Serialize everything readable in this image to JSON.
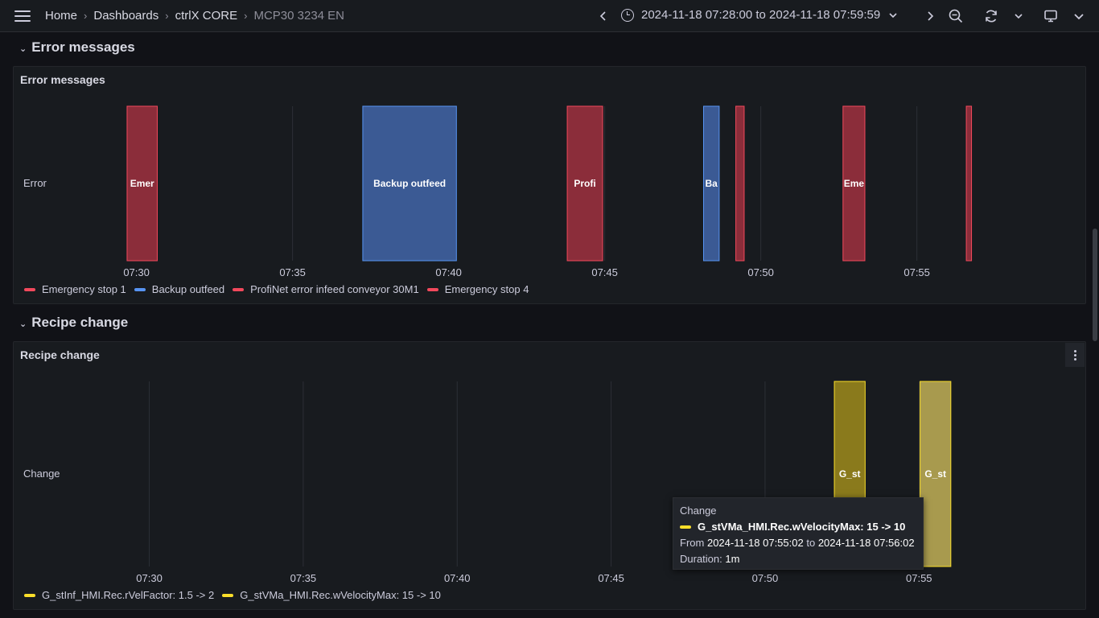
{
  "topbar": {
    "breadcrumbs": [
      "Home",
      "Dashboards",
      "ctrlX CORE"
    ],
    "current": "MCP30 3234 EN",
    "time_range": "2024-11-18 07:28:00 to 2024-11-18 07:59:59"
  },
  "rows": [
    {
      "title": "Error messages"
    },
    {
      "title": "Recipe change"
    }
  ],
  "panels": {
    "errors": {
      "title": "Error messages",
      "legend": [
        {
          "label": "Emergency stop 1",
          "color": "#f2495c"
        },
        {
          "label": "Backup outfeed",
          "color": "#5794f2"
        },
        {
          "label": "ProfiNet error infeed conveyor 30M1",
          "color": "#f2495c"
        },
        {
          "label": "Emergency stop 4",
          "color": "#f2495c"
        }
      ]
    },
    "recipe": {
      "title": "Recipe change",
      "legend": [
        {
          "label": "G_stInf_HMI.Rec.rVelFactor: 1.5 -> 2",
          "color": "#fade2a"
        },
        {
          "label": "G_stVMa_HMI.Rec.wVelocityMax: 15 -> 10",
          "color": "#fade2a"
        }
      ]
    }
  },
  "chart_data": [
    {
      "type": "state-timeline",
      "title": "Error messages",
      "row_label": "Error",
      "x_ticks": [
        "07:30",
        "07:35",
        "07:40",
        "07:45",
        "07:50",
        "07:55"
      ],
      "x_range": [
        "07:28:00",
        "07:59:59"
      ],
      "segments": [
        {
          "label": "Emer",
          "start": "07:29:42",
          "end": "07:30:40",
          "color": "#8b2d3a",
          "border": "#f2495c"
        },
        {
          "label": "Backup outfeed",
          "start": "07:37:15",
          "end": "07:40:15",
          "color": "#3b5a94",
          "border": "#5794f2"
        },
        {
          "label": "Profi",
          "start": "07:43:48",
          "end": "07:44:56",
          "color": "#8b2d3a",
          "border": "#f2495c"
        },
        {
          "label": "Ba",
          "start": "07:48:10",
          "end": "07:48:40",
          "color": "#3b5a94",
          "border": "#5794f2"
        },
        {
          "label": "",
          "start": "07:49:12",
          "end": "07:49:28",
          "color": "#8b2d3a",
          "border": "#f2495c"
        },
        {
          "label": "Eme",
          "start": "07:52:38",
          "end": "07:53:20",
          "color": "#8b2d3a",
          "border": "#f2495c"
        },
        {
          "label": "",
          "start": "07:56:35",
          "end": "07:56:45",
          "color": "#8b2d3a",
          "border": "#f2495c"
        }
      ]
    },
    {
      "type": "state-timeline",
      "title": "Recipe change",
      "row_label": "Change",
      "x_ticks": [
        "07:30",
        "07:35",
        "07:40",
        "07:45",
        "07:50",
        "07:55"
      ],
      "x_range": [
        "07:28:00",
        "07:59:59"
      ],
      "segments": [
        {
          "label": "G_st",
          "start": "07:52:15",
          "end": "07:53:15",
          "color": "#8a7a1c",
          "border": "#fade2a"
        },
        {
          "label": "G_st",
          "start": "07:55:02",
          "end": "07:56:02",
          "color": "#a89a4e",
          "border": "#fade2a"
        }
      ]
    }
  ],
  "tooltip": {
    "title": "Change",
    "series": "G_stVMa_HMI.Rec.wVelocityMax: 15 -> 10",
    "from_label": "From",
    "from": "2024-11-18 07:55:02",
    "to_label": "to",
    "to": "2024-11-18 07:56:02",
    "duration_label": "Duration:",
    "duration": "1m"
  }
}
